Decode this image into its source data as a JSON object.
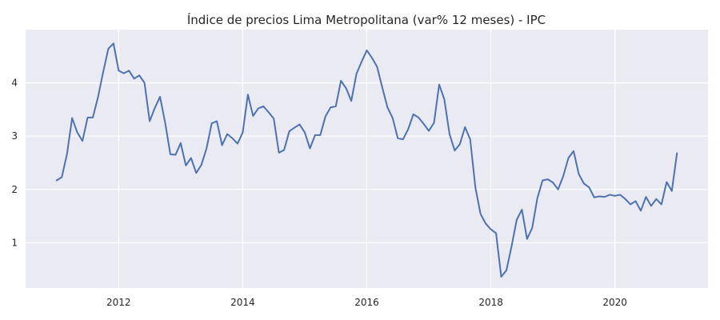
{
  "chart_data": {
    "type": "line",
    "title": "Índice de precios Lima Metropolitana (var% 12 meses) - IPC",
    "xlabel": "",
    "ylabel": "",
    "xlim": [
      2010.5,
      2021.5
    ],
    "ylim": [
      0.15,
      5.0
    ],
    "grid": true,
    "x_ticks": [
      2012,
      2014,
      2016,
      2018,
      2020
    ],
    "x_tick_labels": [
      "2012",
      "2014",
      "2016",
      "2018",
      "2020"
    ],
    "y_ticks": [
      1,
      2,
      3,
      4
    ],
    "y_tick_labels": [
      "1",
      "2",
      "3",
      "4"
    ],
    "series": [
      {
        "name": "",
        "color": "#4c72b0",
        "x": [
          "2011-01",
          "2011-02",
          "2011-03",
          "2011-04",
          "2011-05",
          "2011-06",
          "2011-07",
          "2011-08",
          "2011-09",
          "2011-10",
          "2011-11",
          "2011-12",
          "2012-01",
          "2012-02",
          "2012-03",
          "2012-04",
          "2012-05",
          "2012-06",
          "2012-07",
          "2012-08",
          "2012-09",
          "2012-10",
          "2012-11",
          "2012-12",
          "2013-01",
          "2013-02",
          "2013-03",
          "2013-04",
          "2013-05",
          "2013-06",
          "2013-07",
          "2013-08",
          "2013-09",
          "2013-10",
          "2013-11",
          "2013-12",
          "2014-01",
          "2014-02",
          "2014-03",
          "2014-04",
          "2014-05",
          "2014-06",
          "2014-07",
          "2014-08",
          "2014-09",
          "2014-10",
          "2014-11",
          "2014-12",
          "2015-01",
          "2015-02",
          "2015-03",
          "2015-04",
          "2015-05",
          "2015-06",
          "2015-07",
          "2015-08",
          "2015-09",
          "2015-10",
          "2015-11",
          "2015-12",
          "2016-01",
          "2016-02",
          "2016-03",
          "2016-04",
          "2016-05",
          "2016-06",
          "2016-07",
          "2016-08",
          "2016-09",
          "2016-10",
          "2016-11",
          "2016-12",
          "2017-01",
          "2017-02",
          "2017-03",
          "2017-04",
          "2017-05",
          "2017-06",
          "2017-07",
          "2017-08",
          "2017-09",
          "2017-10",
          "2017-11",
          "2017-12",
          "2018-01",
          "2018-02",
          "2018-03",
          "2018-04",
          "2018-05",
          "2018-06",
          "2018-07",
          "2018-08",
          "2018-09",
          "2018-10",
          "2018-11",
          "2018-12",
          "2019-01",
          "2019-02",
          "2019-03",
          "2019-04",
          "2019-05",
          "2019-06",
          "2019-07",
          "2019-08",
          "2019-09",
          "2019-10",
          "2019-11",
          "2019-12",
          "2020-01",
          "2020-02",
          "2020-03",
          "2020-04",
          "2020-05",
          "2020-06",
          "2020-07",
          "2020-08",
          "2020-09",
          "2020-10",
          "2020-11",
          "2020-12",
          "2021-01"
        ],
        "values": [
          2.17,
          2.23,
          2.66,
          3.34,
          3.07,
          2.91,
          3.35,
          3.35,
          3.73,
          4.2,
          4.64,
          4.74,
          4.23,
          4.18,
          4.23,
          4.08,
          4.14,
          4.0,
          3.28,
          3.53,
          3.74,
          3.25,
          2.66,
          2.65,
          2.87,
          2.45,
          2.59,
          2.31,
          2.46,
          2.77,
          3.24,
          3.28,
          2.83,
          3.04,
          2.96,
          2.86,
          3.07,
          3.78,
          3.38,
          3.52,
          3.56,
          3.45,
          3.33,
          2.69,
          2.74,
          3.09,
          3.16,
          3.22,
          3.07,
          2.77,
          3.02,
          3.02,
          3.37,
          3.54,
          3.56,
          4.04,
          3.9,
          3.66,
          4.17,
          4.4,
          4.61,
          4.47,
          4.3,
          3.91,
          3.54,
          3.34,
          2.96,
          2.94,
          3.13,
          3.41,
          3.35,
          3.23,
          3.1,
          3.25,
          3.97,
          3.69,
          3.04,
          2.73,
          2.85,
          3.17,
          2.94,
          2.04,
          1.54,
          1.36,
          1.25,
          1.18,
          0.36,
          0.48,
          0.93,
          1.43,
          1.62,
          1.07,
          1.28,
          1.84,
          2.17,
          2.19,
          2.13,
          2.0,
          2.25,
          2.59,
          2.72,
          2.29,
          2.11,
          2.04,
          1.85,
          1.87,
          1.86,
          1.9,
          1.88,
          1.9,
          1.82,
          1.72,
          1.78,
          1.6,
          1.86,
          1.69,
          1.82,
          1.72,
          2.14,
          1.97,
          2.68
        ]
      }
    ]
  }
}
